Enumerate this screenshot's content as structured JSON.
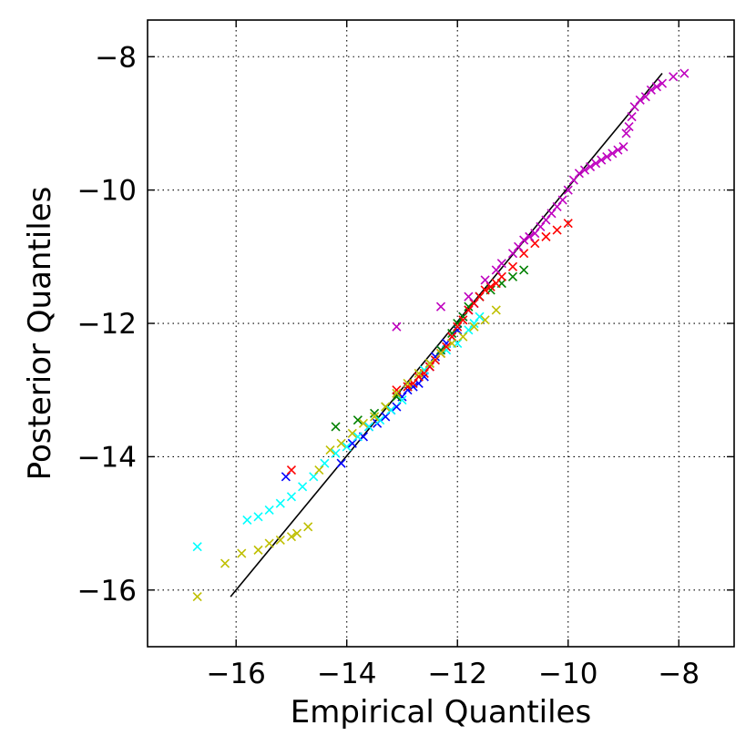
{
  "chart_data": {
    "type": "scatter",
    "title": "",
    "xlabel": "Empirical Quantiles",
    "ylabel": "Posterior Quantiles",
    "xlim": [
      -17.6,
      -7.0
    ],
    "ylim": [
      -16.85,
      -7.45
    ],
    "xticks": [
      -16,
      -14,
      -12,
      -10,
      -8
    ],
    "yticks": [
      -16,
      -14,
      -12,
      -10,
      -8
    ],
    "xtick_labels": [
      "−16",
      "−14",
      "−12",
      "−10",
      "−8"
    ],
    "ytick_labels": [
      "−16",
      "−14",
      "−12",
      "−10",
      "−8"
    ],
    "grid": true,
    "legend": "none",
    "marker": "x",
    "reference_line": {
      "x": [
        -16.1,
        -8.3
      ],
      "y": [
        -16.1,
        -8.25
      ],
      "color": "#000000"
    },
    "series": [
      {
        "color": "#0000ff",
        "x": [
          -15.1,
          -14.1,
          -13.9,
          -13.7,
          -13.6,
          -13.45,
          -13.3,
          -13.2,
          -13.1,
          -13.0,
          -12.9,
          -12.8,
          -12.7,
          -12.6,
          -12.5,
          -12.4,
          -12.3,
          -12.2,
          -12.1,
          -12.0,
          -11.9,
          -11.8,
          -11.7,
          -11.6
        ],
        "y": [
          -14.3,
          -14.1,
          -13.8,
          -13.7,
          -13.55,
          -13.5,
          -13.4,
          -13.3,
          -13.25,
          -13.1,
          -13.0,
          -12.95,
          -12.9,
          -12.8,
          -12.65,
          -12.5,
          -12.4,
          -12.3,
          -12.2,
          -12.1,
          -11.9,
          -11.8,
          -11.7,
          -11.6
        ]
      },
      {
        "color": "#00ffff",
        "x": [
          -16.7,
          -15.8,
          -15.6,
          -15.4,
          -15.2,
          -15.0,
          -14.8,
          -14.6,
          -14.4,
          -14.2,
          -14.0,
          -13.8,
          -13.6,
          -13.4,
          -13.2,
          -13.0,
          -12.8,
          -12.6,
          -12.4,
          -12.2,
          -12.0,
          -11.8,
          -11.7,
          -11.6
        ],
        "y": [
          -15.35,
          -14.95,
          -14.9,
          -14.8,
          -14.7,
          -14.6,
          -14.45,
          -14.3,
          -14.1,
          -13.95,
          -13.85,
          -13.7,
          -13.55,
          -13.45,
          -13.3,
          -13.15,
          -12.9,
          -12.7,
          -12.55,
          -12.4,
          -12.3,
          -12.1,
          -12.0,
          -11.9
        ]
      },
      {
        "color": "#008000",
        "x": [
          -14.2,
          -13.8,
          -13.5,
          -13.3,
          -13.1,
          -12.9,
          -12.7,
          -12.5,
          -12.3,
          -12.1,
          -12.0,
          -11.9,
          -11.8,
          -11.6,
          -11.4,
          -11.2,
          -11.0,
          -10.8
        ],
        "y": [
          -13.55,
          -13.45,
          -13.35,
          -13.25,
          -13.1,
          -12.95,
          -12.8,
          -12.6,
          -12.4,
          -12.15,
          -12.0,
          -11.9,
          -11.75,
          -11.6,
          -11.5,
          -11.4,
          -11.3,
          -11.2
        ]
      },
      {
        "color": "#ff0000",
        "x": [
          -15.0,
          -13.1,
          -12.9,
          -12.8,
          -12.7,
          -12.6,
          -12.5,
          -12.4,
          -12.3,
          -12.2,
          -12.1,
          -12.0,
          -11.9,
          -11.8,
          -11.7,
          -11.6,
          -11.5,
          -11.4,
          -11.3,
          -11.2,
          -11.0,
          -10.8,
          -10.6,
          -10.4,
          -10.2,
          -10.0
        ],
        "y": [
          -14.2,
          -13.0,
          -12.95,
          -12.9,
          -12.8,
          -12.75,
          -12.65,
          -12.55,
          -12.45,
          -12.35,
          -12.2,
          -12.05,
          -11.95,
          -11.8,
          -11.7,
          -11.6,
          -11.5,
          -11.45,
          -11.4,
          -11.3,
          -11.15,
          -10.95,
          -10.8,
          -10.7,
          -10.6,
          -10.5
        ]
      },
      {
        "color": "#bf00bf",
        "x": [
          -13.1,
          -12.3,
          -11.8,
          -11.5,
          -11.3,
          -11.2,
          -11.0,
          -10.9,
          -10.8,
          -10.7,
          -10.6,
          -10.5,
          -10.4,
          -10.3,
          -10.2,
          -10.1,
          -10.0,
          -9.9,
          -9.8,
          -9.7,
          -9.6,
          -9.5,
          -9.4,
          -9.3,
          -9.2,
          -9.1,
          -9.0,
          -8.95,
          -8.9,
          -8.85,
          -8.8,
          -8.7,
          -8.6,
          -8.5,
          -8.4,
          -8.3,
          -8.1,
          -7.9
        ],
        "y": [
          -12.05,
          -11.75,
          -11.6,
          -11.35,
          -11.2,
          -11.1,
          -10.95,
          -10.85,
          -10.75,
          -10.7,
          -10.65,
          -10.55,
          -10.45,
          -10.35,
          -10.25,
          -10.15,
          -10.0,
          -9.85,
          -9.75,
          -9.7,
          -9.65,
          -9.6,
          -9.55,
          -9.5,
          -9.45,
          -9.4,
          -9.35,
          -9.15,
          -9.05,
          -8.9,
          -8.75,
          -8.65,
          -8.6,
          -8.5,
          -8.45,
          -8.4,
          -8.3,
          -8.25
        ]
      },
      {
        "color": "#bfbf00",
        "x": [
          -16.7,
          -16.2,
          -15.9,
          -15.6,
          -15.4,
          -15.2,
          -15.0,
          -14.9,
          -14.7,
          -14.5,
          -14.3,
          -14.1,
          -13.9,
          -13.7,
          -13.5,
          -13.3,
          -13.1,
          -12.9,
          -12.7,
          -12.5,
          -12.3,
          -12.1,
          -11.9,
          -11.7,
          -11.5,
          -11.3
        ],
        "y": [
          -16.1,
          -15.6,
          -15.45,
          -15.4,
          -15.3,
          -15.25,
          -15.2,
          -15.15,
          -15.05,
          -14.2,
          -13.9,
          -13.8,
          -13.65,
          -13.5,
          -13.4,
          -13.25,
          -13.05,
          -12.9,
          -12.75,
          -12.6,
          -12.45,
          -12.3,
          -12.2,
          -12.05,
          -11.95,
          -11.8
        ]
      }
    ]
  }
}
